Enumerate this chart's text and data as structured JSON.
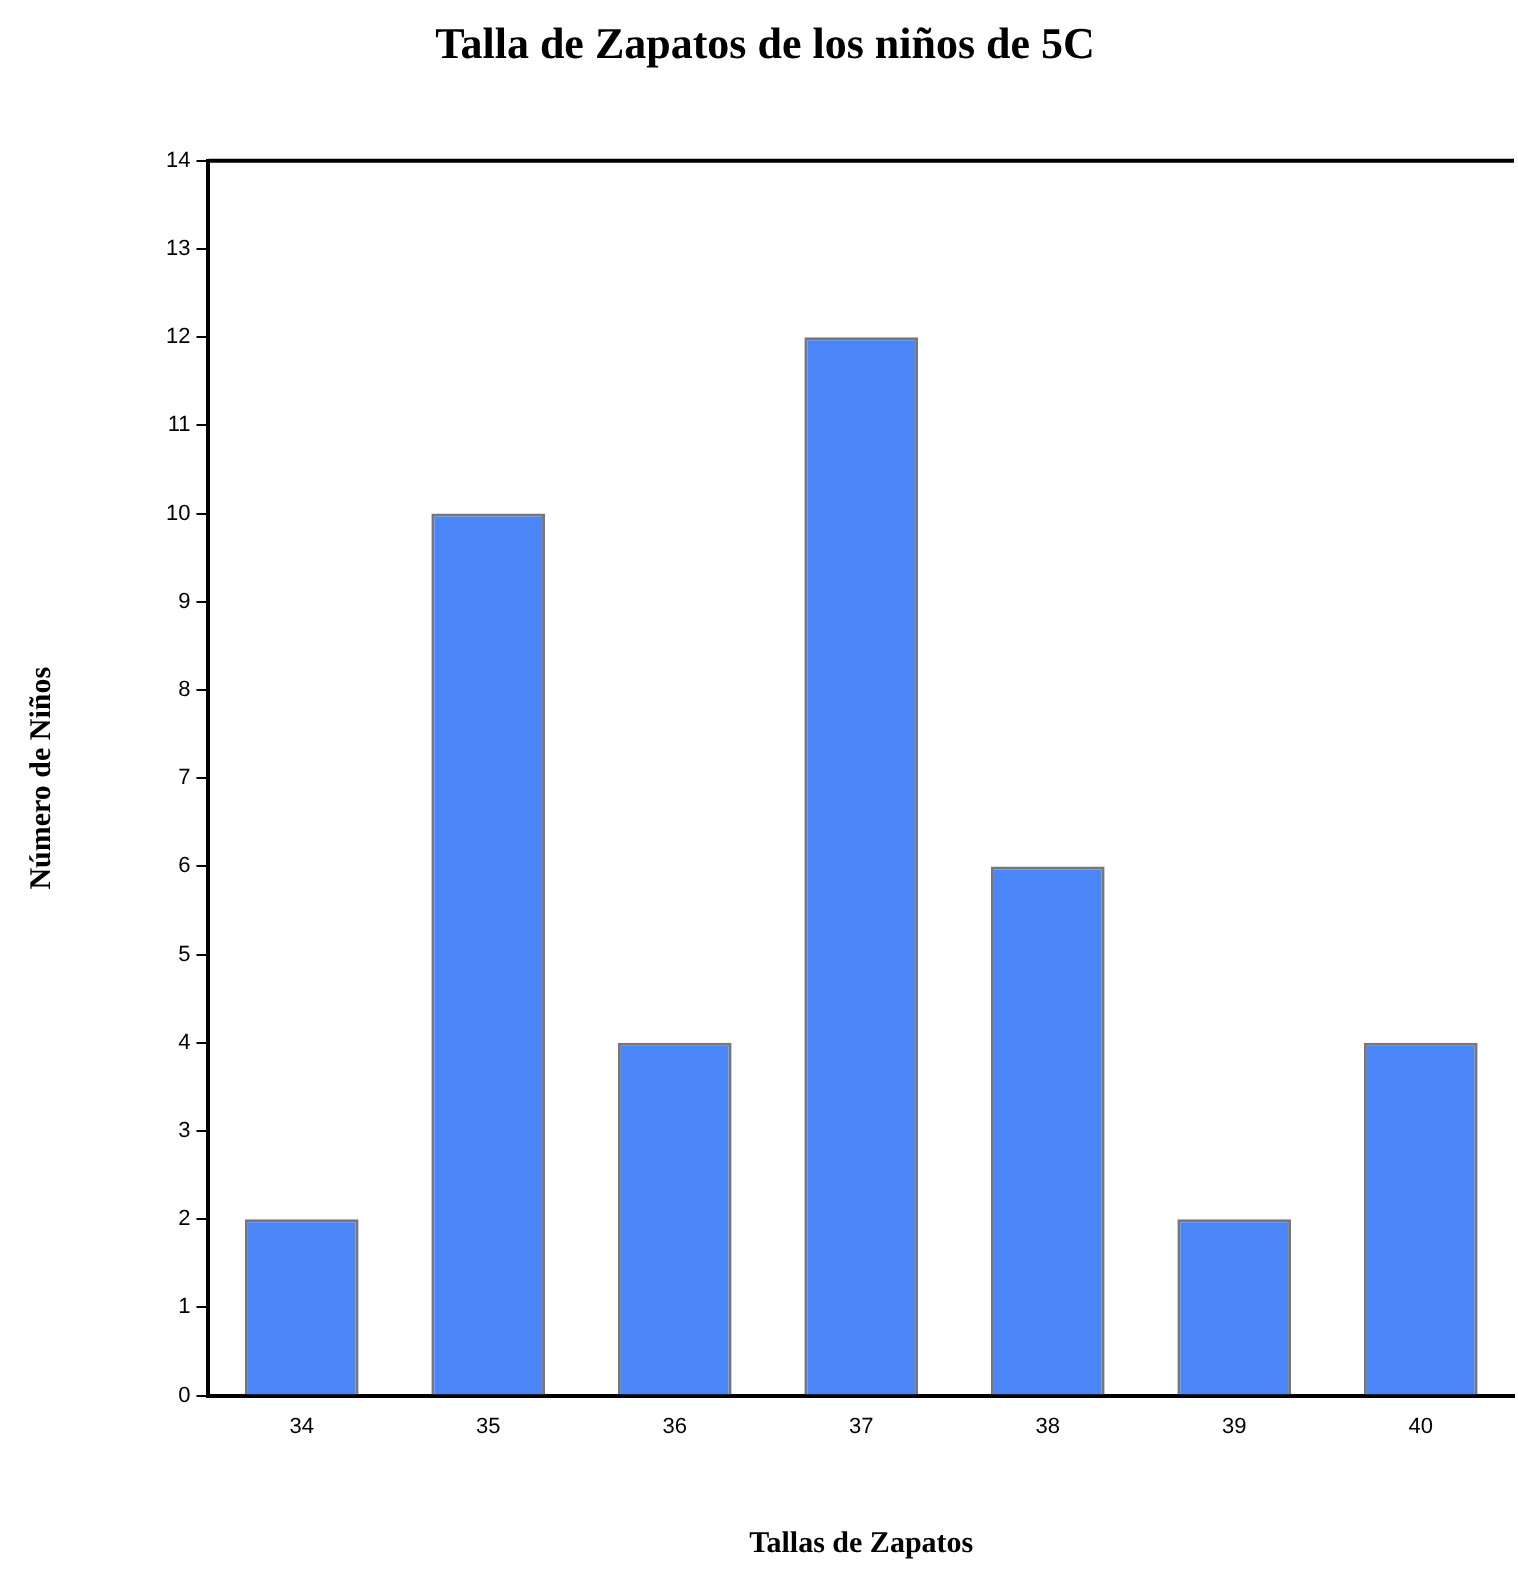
{
  "chart_data": {
    "type": "bar",
    "title": "Talla de Zapatos de los niños de 5C",
    "xlabel": "Tallas de Zapatos",
    "ylabel": "Número de Niños",
    "categories": [
      "34",
      "35",
      "36",
      "37",
      "38",
      "39",
      "40"
    ],
    "values": [
      2,
      10,
      4,
      12,
      6,
      2,
      4
    ],
    "color": "#4a86f8",
    "ylim": [
      0,
      14
    ],
    "yticks": [
      0,
      1,
      2,
      3,
      4,
      5,
      6,
      7,
      8,
      9,
      10,
      11,
      12,
      13,
      14
    ],
    "grid": false,
    "legend": false
  }
}
